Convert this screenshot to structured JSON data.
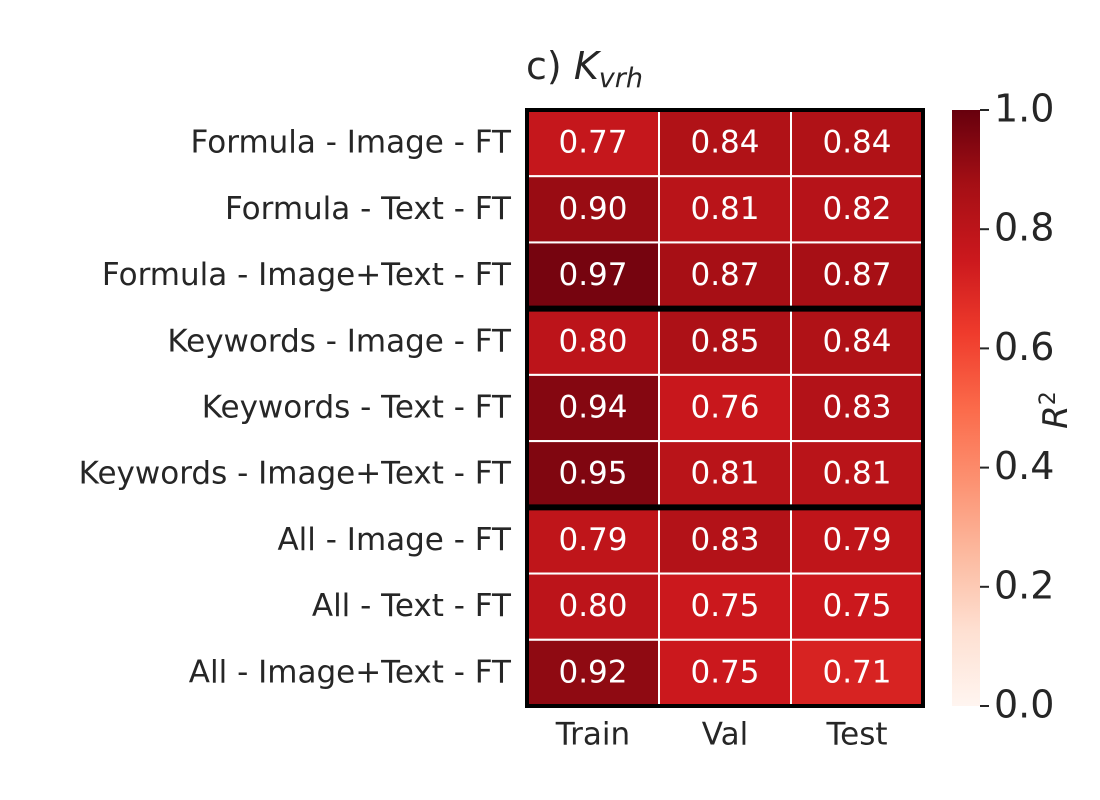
{
  "chart_data": {
    "type": "heatmap",
    "title_prefix": "c)",
    "title_symbol": "K",
    "title_subscript": "vrh",
    "columns": [
      "Train",
      "Val",
      "Test"
    ],
    "rows": [
      "Formula - Image - FT",
      "Formula - Text - FT",
      "Formula - Image+Text - FT",
      "Keywords - Image - FT",
      "Keywords - Text - FT",
      "Keywords - Image+Text - FT",
      "All - Image - FT",
      "All - Text - FT",
      "All - Image+Text - FT"
    ],
    "values": [
      [
        0.77,
        0.84,
        0.84
      ],
      [
        0.9,
        0.81,
        0.82
      ],
      [
        0.97,
        0.87,
        0.87
      ],
      [
        0.8,
        0.85,
        0.84
      ],
      [
        0.94,
        0.76,
        0.83
      ],
      [
        0.95,
        0.81,
        0.81
      ],
      [
        0.79,
        0.83,
        0.79
      ],
      [
        0.8,
        0.75,
        0.75
      ],
      [
        0.92,
        0.75,
        0.71
      ]
    ],
    "value_labels": [
      [
        "0.77",
        "0.84",
        "0.84"
      ],
      [
        "0.90",
        "0.81",
        "0.82"
      ],
      [
        "0.97",
        "0.87",
        "0.87"
      ],
      [
        "0.80",
        "0.85",
        "0.84"
      ],
      [
        "0.94",
        "0.76",
        "0.83"
      ],
      [
        "0.95",
        "0.81",
        "0.81"
      ],
      [
        "0.79",
        "0.83",
        "0.79"
      ],
      [
        "0.80",
        "0.75",
        "0.75"
      ],
      [
        "0.92",
        "0.75",
        "0.71"
      ]
    ],
    "group_separators_after_rows": [
      2,
      5
    ],
    "colorbar": {
      "label_symbol": "R",
      "label_exponent": "2",
      "range": [
        0.0,
        1.0
      ],
      "ticks": [
        "0.0",
        "0.2",
        "0.4",
        "0.6",
        "0.8",
        "1.0"
      ],
      "colormap": "Reds"
    }
  }
}
